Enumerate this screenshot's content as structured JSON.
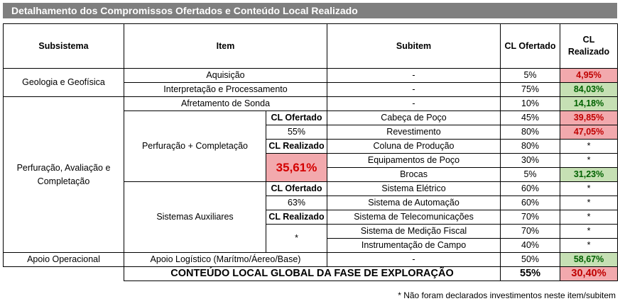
{
  "title": "Detalhamento dos Compromissos Ofertados e Conteúdo Local Realizado",
  "headers": {
    "subsistema": "Subsistema",
    "item": "Item",
    "subitem": "Subitem",
    "cl_ofertado": "CL Ofertado",
    "cl_realizado": "CL Realizado"
  },
  "rows": {
    "geologia": {
      "subsistema": "Geologia e Geofísica",
      "aquisicao": {
        "item": "Aquisição",
        "subitem": "-",
        "ofertado": "5%",
        "realizado": "4,95%"
      },
      "interpretacao": {
        "item": "Interpretação e Processamento",
        "subitem": "-",
        "ofertado": "75%",
        "realizado": "84,03%"
      }
    },
    "perfuracao": {
      "subsistema": "Perfuração, Avaliação e Completação",
      "afretamento": {
        "item": "Afretamento de Sonda",
        "subitem": "-",
        "ofertado": "10%",
        "realizado": "14,18%"
      },
      "perf_comp": {
        "item": "Perfuração + Completação",
        "cl_ofertado_label": "CL Ofertado",
        "cl_ofertado_value": "55%",
        "cl_realizado_label": "CL Realizado",
        "cl_realizado_value": "35,61%",
        "subitems": [
          {
            "subitem": "Cabeça de Poço",
            "ofertado": "45%",
            "realizado": "39,85%"
          },
          {
            "subitem": "Revestimento",
            "ofertado": "80%",
            "realizado": "47,05%"
          },
          {
            "subitem": "Coluna de Produção",
            "ofertado": "80%",
            "realizado": "*"
          },
          {
            "subitem": "Equipamentos de Poço",
            "ofertado": "30%",
            "realizado": "*"
          },
          {
            "subitem": "Brocas",
            "ofertado": "5%",
            "realizado": "31,23%"
          }
        ]
      },
      "auxiliares": {
        "item": "Sistemas Auxiliares",
        "cl_ofertado_label": "CL Ofertado",
        "cl_ofertado_value": "63%",
        "cl_realizado_label": "CL Realizado",
        "cl_realizado_value": "*",
        "subitems": [
          {
            "subitem": "Sistema Elétrico",
            "ofertado": "60%",
            "realizado": "*"
          },
          {
            "subitem": "Sistema de Automação",
            "ofertado": "60%",
            "realizado": "*"
          },
          {
            "subitem": "Sistema de Telecomunicações",
            "ofertado": "70%",
            "realizado": "*"
          },
          {
            "subitem": "Sistema de Medição Fiscal",
            "ofertado": "70%",
            "realizado": "*"
          },
          {
            "subitem": "Instrumentação de Campo",
            "ofertado": "40%",
            "realizado": "*"
          }
        ]
      }
    },
    "apoio": {
      "subsistema": "Apoio Operacional",
      "item": "Apoio Logístico (Marítmo/Áereo/Base)",
      "subitem": "-",
      "ofertado": "50%",
      "realizado": "58,67%"
    }
  },
  "total": {
    "label": "CONTEÚDO LOCAL GLOBAL DA FASE DE EXPLORAÇÃO",
    "ofertado": "55%",
    "realizado": "30,40%"
  },
  "footnote": "* Não foram declarados investimentos neste item/subitem",
  "colors": {
    "banner": "#7f7f7f",
    "red_bg": "#f2a9ad",
    "red_text": "#c00000",
    "green_bg": "#c6e0b4",
    "green_text": "#006100"
  }
}
